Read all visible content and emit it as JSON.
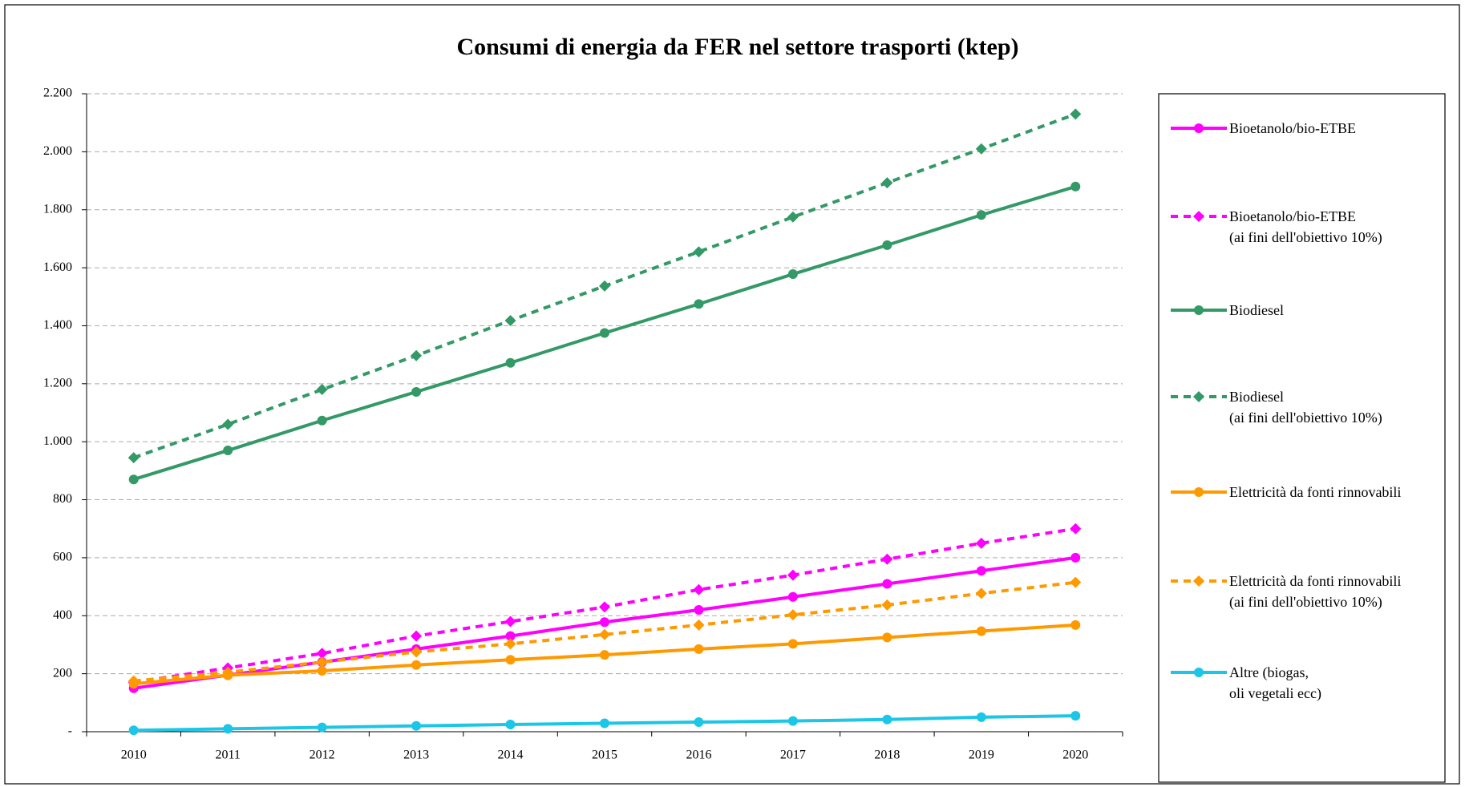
{
  "chart_data": {
    "type": "line",
    "title": "Consumi di energia da FER nel settore trasporti (ktep)",
    "categories": [
      "2010",
      "2011",
      "2012",
      "2013",
      "2014",
      "2015",
      "2016",
      "2017",
      "2018",
      "2019",
      "2020"
    ],
    "ylim": [
      0,
      2200
    ],
    "yticks": [
      {
        "value": 0,
        "label": "-"
      },
      200,
      400,
      600,
      800,
      {
        "value": 1000,
        "label": "1.000"
      },
      {
        "value": 1200,
        "label": "1.200"
      },
      {
        "value": 1400,
        "label": "1.400"
      },
      {
        "value": 1600,
        "label": "1.600"
      },
      {
        "value": 1800,
        "label": "1.800"
      },
      {
        "value": 2000,
        "label": "2.000"
      },
      {
        "value": 2200,
        "label": "2.200"
      }
    ],
    "grid": true,
    "legend": "right",
    "series": [
      {
        "name": "Bioetanolo/bio-ETBE",
        "color": "#ff00ff",
        "dashed": false,
        "marker": "circle",
        "values": [
          150,
          195,
          240,
          285,
          330,
          378,
          420,
          465,
          510,
          555,
          600
        ]
      },
      {
        "name": "Bioetanolo/bio-ETBE\n(ai fini dell'obiettivo 10%)",
        "color": "#ff00ff",
        "dashed": true,
        "marker": "diamond",
        "values": [
          170,
          220,
          270,
          330,
          380,
          430,
          490,
          540,
          595,
          650,
          700
        ]
      },
      {
        "name": "Biodiesel",
        "color": "#339966",
        "dashed": false,
        "marker": "circle",
        "values": [
          870,
          970,
          1073,
          1172,
          1272,
          1375,
          1475,
          1578,
          1678,
          1782,
          1880
        ]
      },
      {
        "name": "Biodiesel\n(ai fini dell'obiettivo 10%)",
        "color": "#339966",
        "dashed": true,
        "marker": "diamond",
        "values": [
          945,
          1060,
          1180,
          1297,
          1418,
          1537,
          1655,
          1775,
          1893,
          2010,
          2130
        ]
      },
      {
        "name": "Elettricità da fonti rinnovabili",
        "color": "#ff9900",
        "dashed": false,
        "marker": "circle",
        "values": [
          165,
          195,
          210,
          230,
          248,
          265,
          285,
          303,
          325,
          347,
          368
        ]
      },
      {
        "name": "Elettricità da fonti rinnovabili\n(ai fini dell'obiettivo 10%)",
        "color": "#ff9900",
        "dashed": true,
        "marker": "diamond",
        "values": [
          175,
          205,
          240,
          275,
          303,
          335,
          368,
          403,
          437,
          477,
          515
        ]
      },
      {
        "name": "Altre (biogas,\noli vegetali ecc)",
        "color": "#1cc6e6",
        "dashed": false,
        "marker": "circle",
        "values": [
          5,
          10,
          15,
          20,
          25,
          29,
          33,
          37,
          42,
          50,
          55
        ]
      }
    ]
  }
}
